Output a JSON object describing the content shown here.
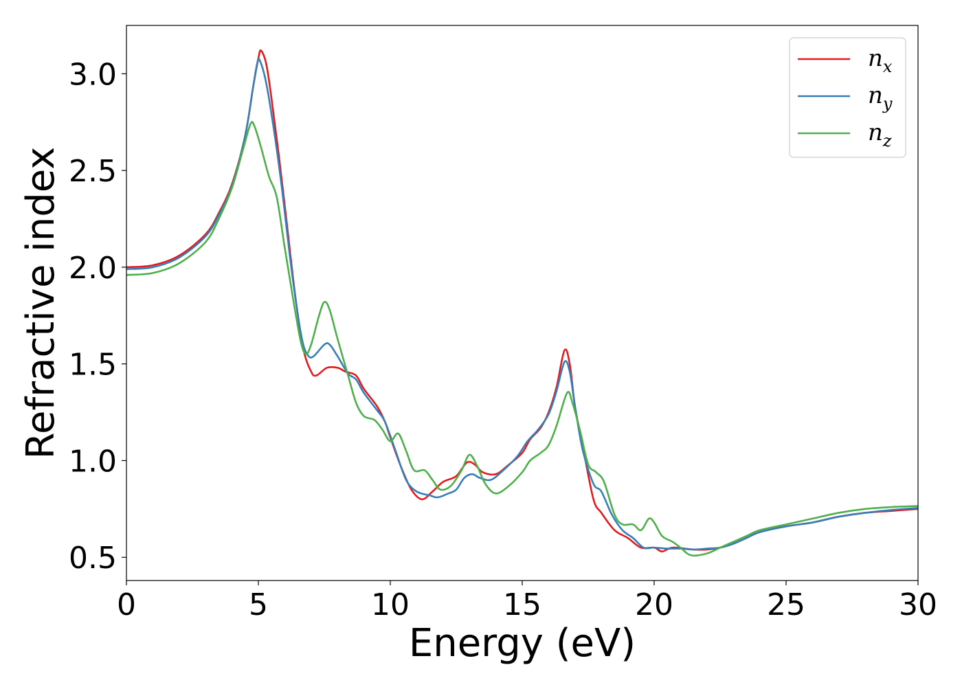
{
  "chart_data": {
    "type": "line",
    "xlabel": "Energy (eV)",
    "ylabel": "Refractive index",
    "xlim": [
      0,
      30
    ],
    "ylim": [
      0.38,
      3.25
    ],
    "xticks": [
      {
        "value": 0,
        "label": "0"
      },
      {
        "value": 5,
        "label": "5"
      },
      {
        "value": 10,
        "label": "10"
      },
      {
        "value": 15,
        "label": "15"
      },
      {
        "value": 20,
        "label": "20"
      },
      {
        "value": 25,
        "label": "25"
      },
      {
        "value": 30,
        "label": "30"
      }
    ],
    "yticks": [
      {
        "value": 0.5,
        "label": "0.5"
      },
      {
        "value": 1.0,
        "label": "1.0"
      },
      {
        "value": 1.5,
        "label": "1.5"
      },
      {
        "value": 2.0,
        "label": "2.0"
      },
      {
        "value": 2.5,
        "label": "2.5"
      },
      {
        "value": 3.0,
        "label": "3.0"
      }
    ],
    "grid": false,
    "legend_position": "top-right",
    "series": [
      {
        "name": "n",
        "subscript": "x",
        "color": "#e41a1c",
        "points": [
          [
            0,
            2.0
          ],
          [
            1,
            2.01
          ],
          [
            2,
            2.06
          ],
          [
            3,
            2.17
          ],
          [
            3.5,
            2.28
          ],
          [
            4,
            2.43
          ],
          [
            4.5,
            2.68
          ],
          [
            4.8,
            2.93
          ],
          [
            5.0,
            3.08
          ],
          [
            5.1,
            3.12
          ],
          [
            5.3,
            3.05
          ],
          [
            5.5,
            2.87
          ],
          [
            5.8,
            2.55
          ],
          [
            6.1,
            2.2
          ],
          [
            6.4,
            1.85
          ],
          [
            6.7,
            1.58
          ],
          [
            7.0,
            1.46
          ],
          [
            7.2,
            1.44
          ],
          [
            7.6,
            1.48
          ],
          [
            8.0,
            1.48
          ],
          [
            8.3,
            1.46
          ],
          [
            8.7,
            1.44
          ],
          [
            9.0,
            1.37
          ],
          [
            9.5,
            1.28
          ],
          [
            9.8,
            1.2
          ],
          [
            10.0,
            1.12
          ],
          [
            10.4,
            0.97
          ],
          [
            10.8,
            0.85
          ],
          [
            11.2,
            0.8
          ],
          [
            11.6,
            0.84
          ],
          [
            12.0,
            0.89
          ],
          [
            12.5,
            0.92
          ],
          [
            12.9,
            0.99
          ],
          [
            13.2,
            0.98
          ],
          [
            13.5,
            0.94
          ],
          [
            14.0,
            0.93
          ],
          [
            14.5,
            0.98
          ],
          [
            15.0,
            1.04
          ],
          [
            15.3,
            1.11
          ],
          [
            15.7,
            1.17
          ],
          [
            16.0,
            1.25
          ],
          [
            16.3,
            1.38
          ],
          [
            16.6,
            1.57
          ],
          [
            16.8,
            1.5
          ],
          [
            17.0,
            1.28
          ],
          [
            17.3,
            1.07
          ],
          [
            17.7,
            0.8
          ],
          [
            18.0,
            0.73
          ],
          [
            18.5,
            0.64
          ],
          [
            19.0,
            0.6
          ],
          [
            19.5,
            0.55
          ],
          [
            20.0,
            0.55
          ],
          [
            20.3,
            0.53
          ],
          [
            20.7,
            0.55
          ],
          [
            21.5,
            0.54
          ],
          [
            22.0,
            0.54
          ],
          [
            22.5,
            0.55
          ],
          [
            23.0,
            0.57
          ],
          [
            23.5,
            0.6
          ],
          [
            24.0,
            0.63
          ],
          [
            25.0,
            0.66
          ],
          [
            26.0,
            0.68
          ],
          [
            27.0,
            0.71
          ],
          [
            28.0,
            0.73
          ],
          [
            29.0,
            0.74
          ],
          [
            30.0,
            0.75
          ]
        ]
      },
      {
        "name": "n",
        "subscript": "y",
        "color": "#377eb8",
        "points": [
          [
            0,
            1.99
          ],
          [
            1,
            2.0
          ],
          [
            2,
            2.05
          ],
          [
            3,
            2.16
          ],
          [
            3.5,
            2.27
          ],
          [
            4,
            2.42
          ],
          [
            4.5,
            2.68
          ],
          [
            4.8,
            2.93
          ],
          [
            4.95,
            3.05
          ],
          [
            5.05,
            3.07
          ],
          [
            5.3,
            2.95
          ],
          [
            5.6,
            2.7
          ],
          [
            5.9,
            2.4
          ],
          [
            6.2,
            2.05
          ],
          [
            6.5,
            1.75
          ],
          [
            6.7,
            1.6
          ],
          [
            6.9,
            1.54
          ],
          [
            7.1,
            1.54
          ],
          [
            7.5,
            1.6
          ],
          [
            7.7,
            1.6
          ],
          [
            8.0,
            1.54
          ],
          [
            8.4,
            1.45
          ],
          [
            8.7,
            1.42
          ],
          [
            9.0,
            1.35
          ],
          [
            9.5,
            1.26
          ],
          [
            9.8,
            1.2
          ],
          [
            10.2,
            1.05
          ],
          [
            10.6,
            0.9
          ],
          [
            11.0,
            0.84
          ],
          [
            11.5,
            0.82
          ],
          [
            11.8,
            0.81
          ],
          [
            12.2,
            0.83
          ],
          [
            12.5,
            0.85
          ],
          [
            12.8,
            0.91
          ],
          [
            13.1,
            0.93
          ],
          [
            13.4,
            0.91
          ],
          [
            13.8,
            0.9
          ],
          [
            14.2,
            0.94
          ],
          [
            14.8,
            1.02
          ],
          [
            15.2,
            1.1
          ],
          [
            15.6,
            1.16
          ],
          [
            16.0,
            1.24
          ],
          [
            16.3,
            1.36
          ],
          [
            16.6,
            1.51
          ],
          [
            16.8,
            1.46
          ],
          [
            17.0,
            1.28
          ],
          [
            17.3,
            1.05
          ],
          [
            17.7,
            0.88
          ],
          [
            18.0,
            0.84
          ],
          [
            18.4,
            0.72
          ],
          [
            18.8,
            0.64
          ],
          [
            19.2,
            0.6
          ],
          [
            19.6,
            0.55
          ],
          [
            20.0,
            0.55
          ],
          [
            20.5,
            0.545
          ],
          [
            21.0,
            0.545
          ],
          [
            21.5,
            0.54
          ],
          [
            22.0,
            0.545
          ],
          [
            22.5,
            0.55
          ],
          [
            23.0,
            0.57
          ],
          [
            23.5,
            0.6
          ],
          [
            24.0,
            0.63
          ],
          [
            25.0,
            0.66
          ],
          [
            26.0,
            0.68
          ],
          [
            27.0,
            0.71
          ],
          [
            28.0,
            0.73
          ],
          [
            29.0,
            0.745
          ],
          [
            30.0,
            0.755
          ]
        ]
      },
      {
        "name": "n",
        "subscript": "z",
        "color": "#4daf4a",
        "points": [
          [
            0,
            1.96
          ],
          [
            1,
            1.97
          ],
          [
            2,
            2.02
          ],
          [
            3,
            2.13
          ],
          [
            3.5,
            2.25
          ],
          [
            4,
            2.41
          ],
          [
            4.4,
            2.6
          ],
          [
            4.7,
            2.74
          ],
          [
            4.85,
            2.73
          ],
          [
            5.1,
            2.62
          ],
          [
            5.4,
            2.47
          ],
          [
            5.7,
            2.36
          ],
          [
            6.0,
            2.1
          ],
          [
            6.3,
            1.85
          ],
          [
            6.6,
            1.62
          ],
          [
            6.8,
            1.55
          ],
          [
            7.0,
            1.6
          ],
          [
            7.3,
            1.75
          ],
          [
            7.5,
            1.82
          ],
          [
            7.7,
            1.78
          ],
          [
            8.0,
            1.63
          ],
          [
            8.4,
            1.44
          ],
          [
            8.7,
            1.3
          ],
          [
            9.0,
            1.23
          ],
          [
            9.4,
            1.21
          ],
          [
            9.7,
            1.16
          ],
          [
            10.0,
            1.1
          ],
          [
            10.3,
            1.14
          ],
          [
            10.6,
            1.05
          ],
          [
            10.9,
            0.95
          ],
          [
            11.3,
            0.95
          ],
          [
            11.6,
            0.9
          ],
          [
            11.9,
            0.85
          ],
          [
            12.3,
            0.87
          ],
          [
            12.7,
            0.95
          ],
          [
            13.0,
            1.03
          ],
          [
            13.3,
            0.97
          ],
          [
            13.6,
            0.88
          ],
          [
            14.0,
            0.83
          ],
          [
            14.5,
            0.87
          ],
          [
            15.0,
            0.94
          ],
          [
            15.3,
            1.0
          ],
          [
            15.7,
            1.04
          ],
          [
            16.0,
            1.08
          ],
          [
            16.3,
            1.18
          ],
          [
            16.7,
            1.35
          ],
          [
            16.9,
            1.3
          ],
          [
            17.2,
            1.15
          ],
          [
            17.5,
            0.98
          ],
          [
            17.8,
            0.94
          ],
          [
            18.1,
            0.89
          ],
          [
            18.5,
            0.72
          ],
          [
            18.8,
            0.67
          ],
          [
            19.2,
            0.67
          ],
          [
            19.5,
            0.64
          ],
          [
            19.8,
            0.7
          ],
          [
            20.0,
            0.68
          ],
          [
            20.3,
            0.61
          ],
          [
            20.7,
            0.58
          ],
          [
            21.0,
            0.55
          ],
          [
            21.4,
            0.51
          ],
          [
            22.0,
            0.52
          ],
          [
            22.5,
            0.55
          ],
          [
            23.0,
            0.58
          ],
          [
            23.5,
            0.61
          ],
          [
            24.0,
            0.64
          ],
          [
            25.0,
            0.67
          ],
          [
            26.0,
            0.7
          ],
          [
            27.0,
            0.73
          ],
          [
            28.0,
            0.75
          ],
          [
            29.0,
            0.76
          ],
          [
            30.0,
            0.765
          ]
        ]
      }
    ]
  }
}
